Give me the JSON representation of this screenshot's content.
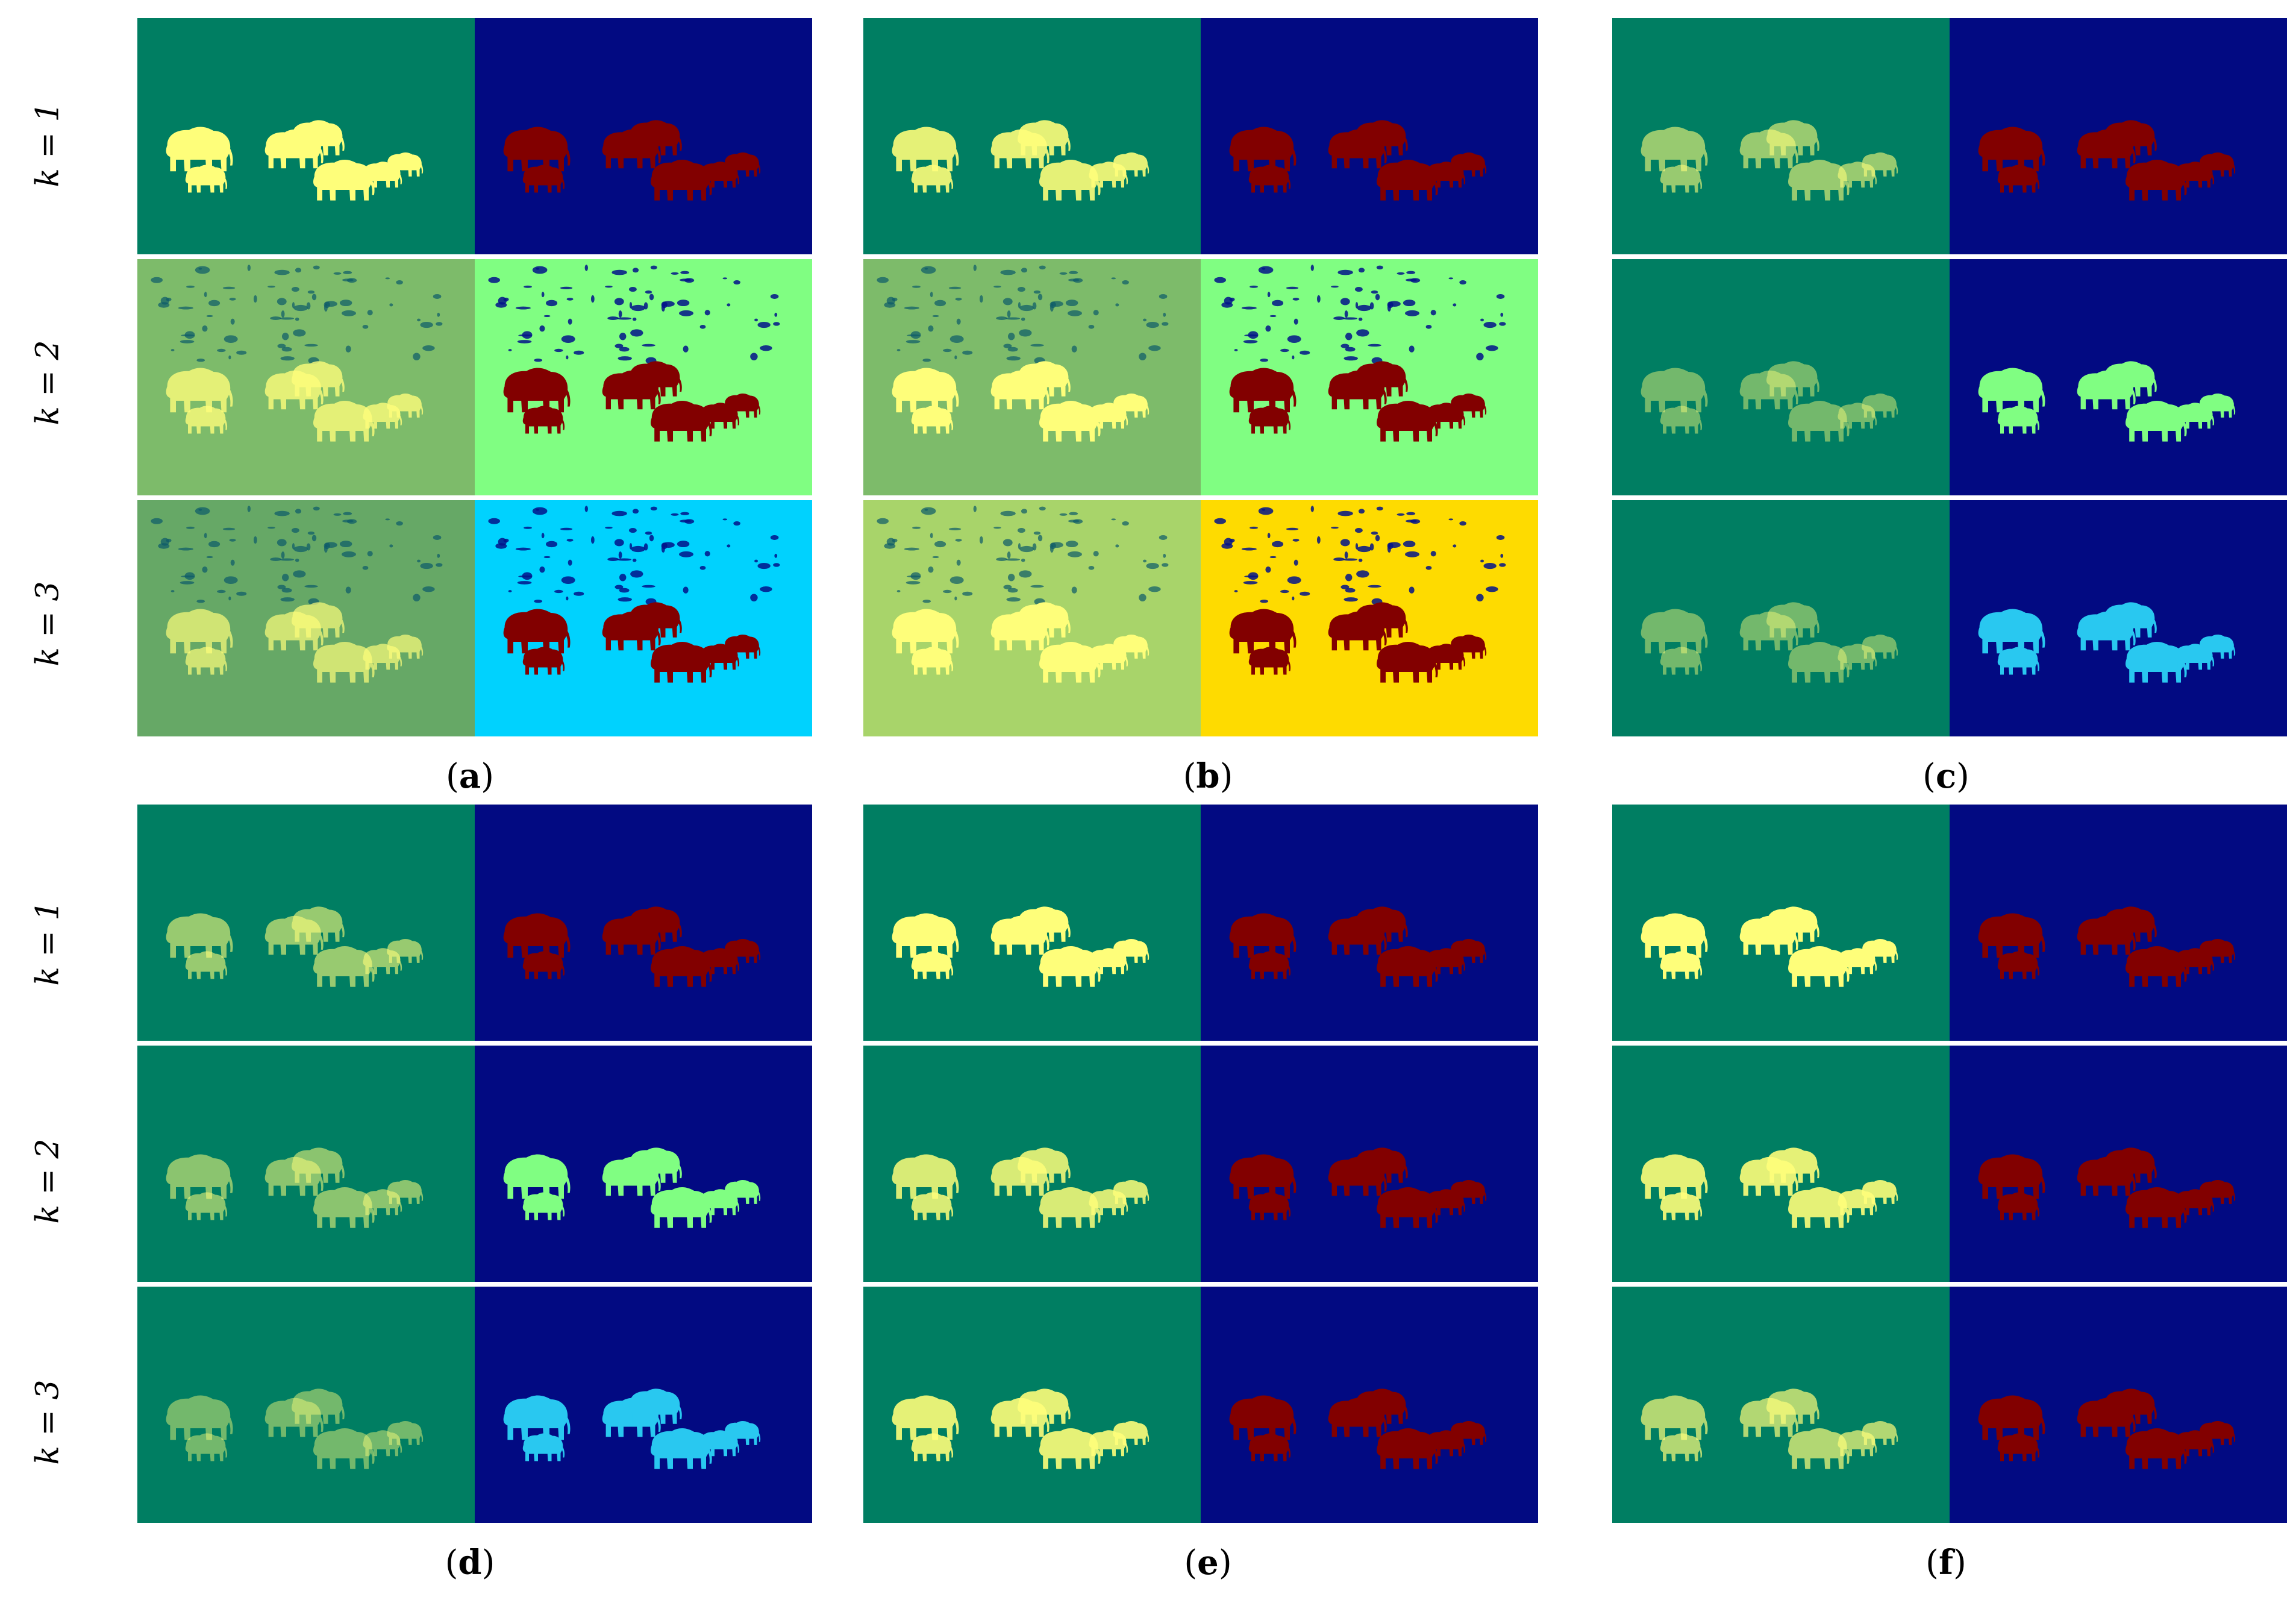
{
  "row_labels": [
    "k = 1",
    "k = 2",
    "k = 3"
  ],
  "captions": {
    "a": {
      "open": "(",
      "letter": "a",
      "close": ")"
    },
    "b": {
      "open": "(",
      "letter": "b",
      "close": ")"
    },
    "c": {
      "open": "(",
      "letter": "c",
      "close": ")"
    },
    "d": {
      "open": "(",
      "letter": "d",
      "close": ")"
    },
    "e": {
      "open": "(",
      "letter": "e",
      "close": ")"
    },
    "f": {
      "open": "(",
      "letter": "f",
      "close": ")"
    }
  },
  "colors": {
    "teal_bg": "#007e62",
    "olive_bg": "#7dbb6a",
    "green_bg2": "#66a866",
    "lightgreen_bg": "#a8d46a",
    "navy_bg": "#020a82",
    "mint_bg": "#80fe82",
    "cyan_bg": "#00d2fe",
    "gold_bg": "#fedb00",
    "elephant_yellow": "#fefe7a",
    "elephant_dark_red": "#820000",
    "elephant_mint": "#80fe82",
    "elephant_cyan": "#29c8f0"
  },
  "panels": [
    {
      "id": "a",
      "rows": [
        {
          "left_bg": "teal_bg",
          "left_fg": "elephant_yellow",
          "left_op": 1.0,
          "right_bg": "navy_bg",
          "right_fg": "elephant_dark_red",
          "noise": false
        },
        {
          "left_bg": "olive_bg",
          "left_fg": "elephant_yellow",
          "left_op": 0.8,
          "right_bg": "mint_bg",
          "right_fg": "elephant_dark_red",
          "noise": true
        },
        {
          "left_bg": "green_bg2",
          "left_fg": "elephant_yellow",
          "left_op": 0.7,
          "right_bg": "cyan_bg",
          "right_fg": "elephant_dark_red",
          "noise": true
        }
      ]
    },
    {
      "id": "b",
      "rows": [
        {
          "left_bg": "teal_bg",
          "left_fg": "elephant_yellow",
          "left_op": 0.9,
          "right_bg": "navy_bg",
          "right_fg": "elephant_dark_red",
          "noise": false
        },
        {
          "left_bg": "olive_bg",
          "left_fg": "elephant_yellow",
          "left_op": 1.0,
          "right_bg": "mint_bg",
          "right_fg": "elephant_dark_red",
          "noise": true
        },
        {
          "left_bg": "lightgreen_bg",
          "left_fg": "elephant_yellow",
          "left_op": 1.0,
          "right_bg": "gold_bg",
          "right_fg": "elephant_dark_red",
          "noise": true
        }
      ]
    },
    {
      "id": "c",
      "rows": [
        {
          "left_bg": "teal_bg",
          "left_fg": "elephant_yellow",
          "left_op": 0.6,
          "right_bg": "navy_bg",
          "right_fg": "elephant_dark_red",
          "noise": false
        },
        {
          "left_bg": "teal_bg",
          "left_fg": "elephant_yellow",
          "left_op": 0.45,
          "right_bg": "navy_bg",
          "right_fg": "elephant_mint",
          "noise": false
        },
        {
          "left_bg": "teal_bg",
          "left_fg": "elephant_yellow",
          "left_op": 0.45,
          "right_bg": "navy_bg",
          "right_fg": "elephant_cyan",
          "noise": false
        }
      ]
    },
    {
      "id": "d",
      "rows": [
        {
          "left_bg": "teal_bg",
          "left_fg": "elephant_yellow",
          "left_op": 0.6,
          "right_bg": "navy_bg",
          "right_fg": "elephant_dark_red",
          "noise": false
        },
        {
          "left_bg": "teal_bg",
          "left_fg": "elephant_yellow",
          "left_op": 0.55,
          "right_bg": "navy_bg",
          "right_fg": "elephant_mint",
          "noise": false
        },
        {
          "left_bg": "teal_bg",
          "left_fg": "elephant_yellow",
          "left_op": 0.45,
          "right_bg": "navy_bg",
          "right_fg": "elephant_cyan",
          "noise": false
        }
      ]
    },
    {
      "id": "e",
      "rows": [
        {
          "left_bg": "teal_bg",
          "left_fg": "elephant_yellow",
          "left_op": 1.0,
          "right_bg": "navy_bg",
          "right_fg": "elephant_dark_red",
          "noise": false
        },
        {
          "left_bg": "teal_bg",
          "left_fg": "elephant_yellow",
          "left_op": 0.85,
          "right_bg": "navy_bg",
          "right_fg": "elephant_dark_red",
          "noise": false
        },
        {
          "left_bg": "teal_bg",
          "left_fg": "elephant_yellow",
          "left_op": 0.9,
          "right_bg": "navy_bg",
          "right_fg": "elephant_dark_red",
          "noise": false
        }
      ]
    },
    {
      "id": "f",
      "rows": [
        {
          "left_bg": "teal_bg",
          "left_fg": "elephant_yellow",
          "left_op": 1.0,
          "right_bg": "navy_bg",
          "right_fg": "elephant_dark_red",
          "noise": false
        },
        {
          "left_bg": "teal_bg",
          "left_fg": "elephant_yellow",
          "left_op": 0.9,
          "right_bg": "navy_bg",
          "right_fg": "elephant_dark_red",
          "noise": false
        },
        {
          "left_bg": "teal_bg",
          "left_fg": "elephant_yellow",
          "left_op": 0.7,
          "right_bg": "navy_bg",
          "right_fg": "elephant_dark_red",
          "noise": false
        }
      ]
    }
  ]
}
